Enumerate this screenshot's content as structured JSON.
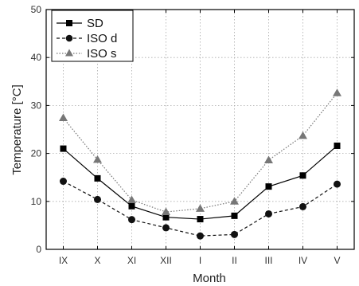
{
  "chart_data": {
    "type": "line",
    "categories": [
      "IX",
      "X",
      "XI",
      "XII",
      "I",
      "II",
      "III",
      "IV",
      "V"
    ],
    "series": [
      {
        "name": "SD",
        "values": [
          21.0,
          14.8,
          9.0,
          6.7,
          6.3,
          7.0,
          13.1,
          15.4,
          21.6
        ],
        "color": "#000000",
        "line_style": "solid",
        "marker": "square"
      },
      {
        "name": "ISO d",
        "values": [
          14.2,
          10.4,
          6.2,
          4.5,
          2.8,
          3.1,
          7.4,
          8.9,
          13.6
        ],
        "color": "#111111",
        "line_style": "dashed",
        "marker": "circle"
      },
      {
        "name": "ISO s",
        "values": [
          27.4,
          18.7,
          10.3,
          7.8,
          8.5,
          10.0,
          18.6,
          23.7,
          32.6
        ],
        "color": "#777777",
        "line_style": "dotted",
        "marker": "triangle"
      }
    ],
    "xlabel": "Month",
    "ylabel": "Temperature [°C]",
    "ylim": [
      0,
      50
    ],
    "yticks": [
      0,
      10,
      20,
      30,
      40,
      50
    ],
    "grid": true,
    "legend_position": "top-left"
  }
}
